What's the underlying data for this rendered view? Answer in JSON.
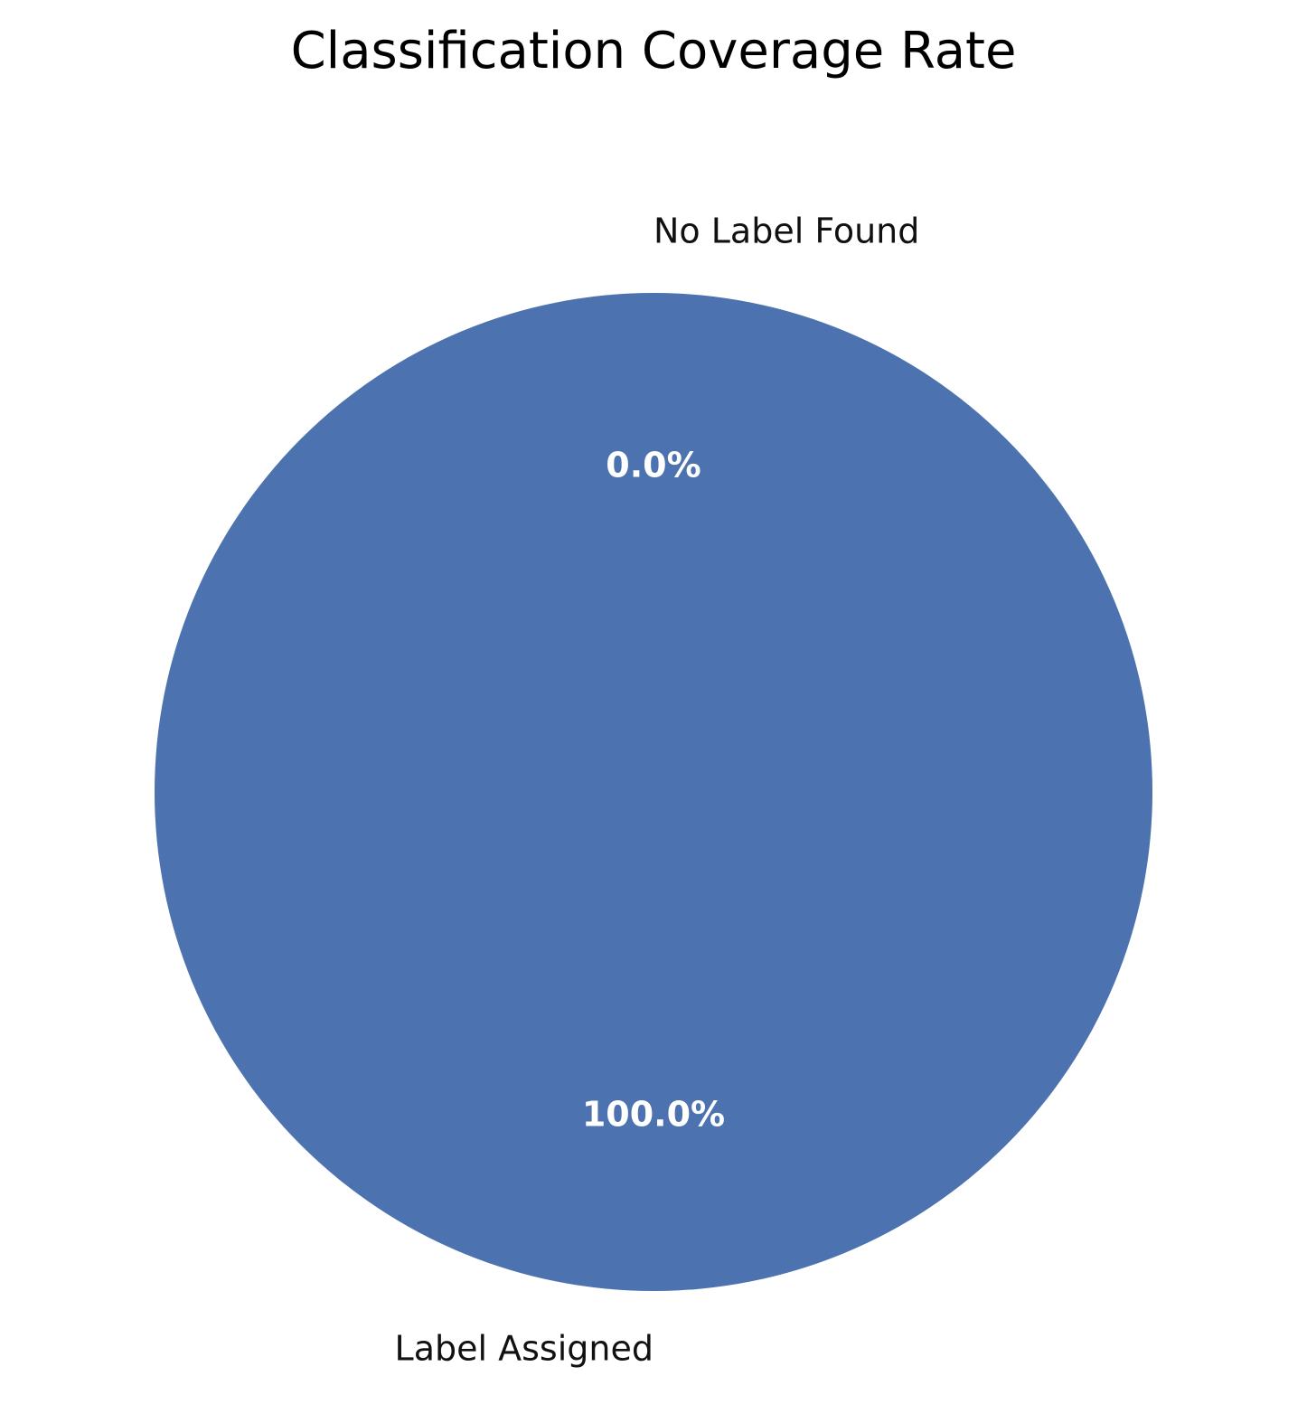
{
  "chart_data": {
    "type": "pie",
    "title": "Classification Coverage Rate",
    "slices": [
      {
        "label": "No Label Found",
        "value": 0.0,
        "percent_label": "0.0%",
        "color": "#4c72b0"
      },
      {
        "label": "Label Assigned",
        "value": 100.0,
        "percent_label": "100.0%",
        "color": "#4c72b0"
      }
    ],
    "start_angle_deg": 90,
    "direction": "counterclockwise"
  }
}
